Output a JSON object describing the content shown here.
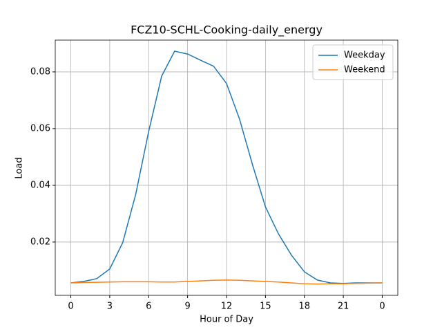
{
  "chart_data": {
    "type": "line",
    "title": "FCZ10-SCHL-Cooking-daily_energy",
    "x_label": "Hour of Day",
    "y_label": "Load",
    "x": [
      0,
      1,
      2,
      3,
      4,
      5,
      6,
      7,
      8,
      9,
      10,
      11,
      12,
      13,
      14,
      15,
      16,
      17,
      18,
      19,
      20,
      21,
      22,
      23,
      24
    ],
    "series": [
      {
        "name": "Weekday",
        "color": "#1f77b4",
        "values": [
          0.0056,
          0.0061,
          0.0071,
          0.0105,
          0.0198,
          0.0368,
          0.059,
          0.0785,
          0.0873,
          0.0863,
          0.0841,
          0.082,
          0.0759,
          0.0634,
          0.0473,
          0.0324,
          0.0229,
          0.0154,
          0.0095,
          0.0066,
          0.0056,
          0.0054,
          0.0056,
          0.0056,
          0.0056
        ]
      },
      {
        "name": "Weekend",
        "color": "#ff7f0e",
        "values": [
          0.0056,
          0.0057,
          0.0058,
          0.0059,
          0.006,
          0.006,
          0.006,
          0.0059,
          0.0059,
          0.0061,
          0.0063,
          0.0065,
          0.0066,
          0.0065,
          0.0063,
          0.0061,
          0.0059,
          0.0056,
          0.0053,
          0.0052,
          0.0053,
          0.0053,
          0.0054,
          0.0055,
          0.0056
        ]
      }
    ],
    "xlim": [
      -1.2,
      25.2
    ],
    "ylim": [
      0.0012,
      0.0912
    ],
    "xticks": [
      0,
      3,
      6,
      9,
      12,
      15,
      18,
      21,
      {
        "value": 24,
        "label": "0"
      }
    ],
    "yticks": [
      0.02,
      0.04,
      0.06,
      0.08
    ],
    "grid": true,
    "legend": "upper right"
  }
}
